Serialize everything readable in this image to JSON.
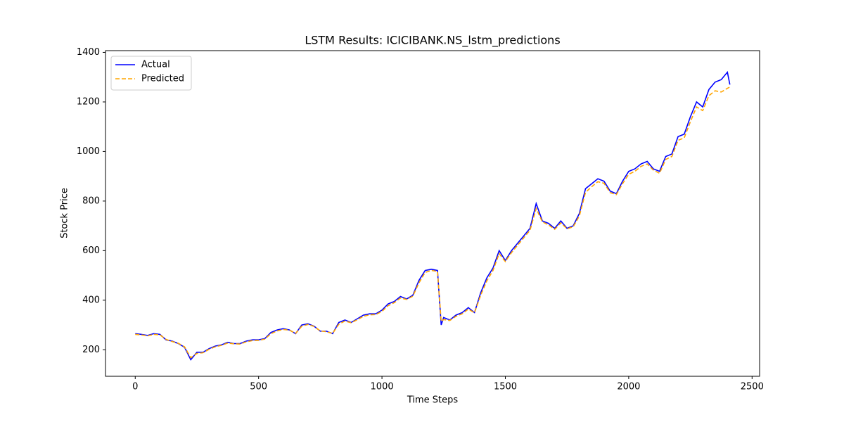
{
  "chart_data": {
    "type": "line",
    "title": "LSTM Results: ICICIBANK.NS_lstm_predictions",
    "xlabel": "Time Steps",
    "ylabel": "Stock Price",
    "x": [
      0,
      25,
      50,
      75,
      100,
      125,
      150,
      175,
      200,
      225,
      250,
      275,
      300,
      325,
      350,
      375,
      400,
      425,
      450,
      475,
      500,
      525,
      550,
      575,
      600,
      625,
      650,
      675,
      700,
      725,
      750,
      775,
      800,
      825,
      850,
      875,
      900,
      925,
      950,
      975,
      1000,
      1025,
      1050,
      1075,
      1100,
      1125,
      1150,
      1175,
      1200,
      1225,
      1240,
      1250,
      1275,
      1300,
      1325,
      1350,
      1375,
      1400,
      1425,
      1450,
      1475,
      1500,
      1525,
      1550,
      1575,
      1600,
      1625,
      1650,
      1675,
      1700,
      1725,
      1750,
      1775,
      1800,
      1825,
      1850,
      1875,
      1900,
      1925,
      1950,
      1975,
      2000,
      2025,
      2050,
      2075,
      2100,
      2125,
      2150,
      2175,
      2200,
      2225,
      2250,
      2275,
      2300,
      2325,
      2350,
      2375,
      2400,
      2410
    ],
    "series": [
      {
        "name": "Actual",
        "color": "#0000ff",
        "linestyle": "solid",
        "values": [
          265,
          262,
          258,
          265,
          262,
          240,
          235,
          225,
          210,
          160,
          190,
          190,
          205,
          215,
          220,
          230,
          225,
          225,
          235,
          240,
          240,
          245,
          270,
          280,
          285,
          280,
          265,
          300,
          305,
          295,
          275,
          275,
          265,
          310,
          320,
          310,
          325,
          340,
          345,
          345,
          360,
          385,
          395,
          415,
          405,
          420,
          480,
          520,
          525,
          520,
          300,
          330,
          320,
          340,
          350,
          370,
          350,
          430,
          490,
          530,
          600,
          560,
          600,
          630,
          660,
          690,
          790,
          720,
          710,
          690,
          720,
          690,
          700,
          750,
          850,
          870,
          890,
          880,
          840,
          830,
          880,
          920,
          930,
          950,
          960,
          930,
          920,
          980,
          990,
          1060,
          1070,
          1140,
          1200,
          1180,
          1250,
          1280,
          1290,
          1320,
          1270
        ]
      },
      {
        "name": "Predicted",
        "color": "#ffa500",
        "linestyle": "dashed",
        "values": [
          262,
          260,
          256,
          262,
          260,
          242,
          233,
          226,
          212,
          168,
          185,
          188,
          202,
          212,
          218,
          227,
          224,
          223,
          232,
          237,
          238,
          243,
          265,
          276,
          282,
          279,
          266,
          295,
          302,
          294,
          276,
          273,
          266,
          303,
          316,
          309,
          321,
          335,
          341,
          342,
          355,
          378,
          390,
          409,
          403,
          416,
          470,
          512,
          520,
          516,
          315,
          322,
          318,
          335,
          345,
          364,
          349,
          420,
          478,
          520,
          588,
          556,
          592,
          622,
          652,
          682,
          770,
          716,
          704,
          686,
          712,
          688,
          696,
          740,
          835,
          858,
          878,
          872,
          834,
          826,
          870,
          908,
          920,
          940,
          950,
          925,
          912,
          968,
          980,
          1045,
          1055,
          1120,
          1180,
          1165,
          1225,
          1245,
          1240,
          1255,
          1260
        ]
      }
    ],
    "xlim": [
      -120.5,
      2530.5
    ],
    "xticks": [
      0,
      500,
      1000,
      1500,
      2000,
      2500
    ],
    "ylim": [
      93,
      1407
    ],
    "yticks": [
      200,
      400,
      600,
      800,
      1000,
      1200,
      1400
    ],
    "grid": false,
    "legend": "upper left"
  }
}
